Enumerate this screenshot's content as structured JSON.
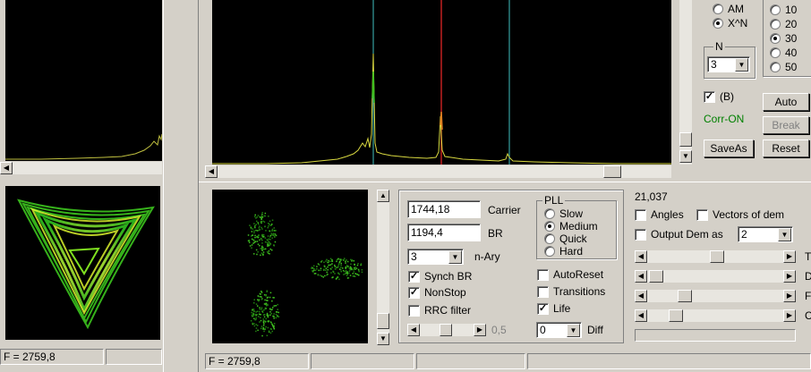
{
  "left_panel": {
    "status_text": "F = 2759,8"
  },
  "spectrum": {},
  "constellation": {},
  "controls": {
    "carrier_value": "1744,18",
    "carrier_label": "Carrier",
    "br_value": "1194,4",
    "br_label": "BR",
    "nary_value": "3",
    "nary_label": "n-Ary",
    "synch_br_label": "Synch BR",
    "synch_br_checked": true,
    "nonstop_label": "NonStop",
    "nonstop_checked": true,
    "rrc_label": "RRC filter",
    "rrc_checked": false,
    "slider_value": "0,5",
    "pll": {
      "title": "PLL",
      "options": [
        "Slow",
        "Medium",
        "Quick",
        "Hard"
      ],
      "selected": "Medium"
    },
    "autoreset_label": "AutoReset",
    "autoreset_checked": false,
    "transitions_label": "Transitions",
    "transitions_checked": false,
    "life_label": "Life",
    "life_checked": true,
    "diff_value": "0",
    "diff_label": "Diff"
  },
  "right_panel": {
    "value_readout": "21,037",
    "angles_label": "Angles",
    "vectors_label": "Vectors of dem",
    "output_dem_label": "Output Dem as",
    "output_dem_value": "2",
    "slider_labels": [
      "T",
      "D",
      "F",
      "C"
    ]
  },
  "top_right": {
    "mode_options": [
      "AM",
      "X^N"
    ],
    "mode_selected": "X^N",
    "n_group_title": "N",
    "n_value": "3",
    "number_options": [
      "10",
      "20",
      "30",
      "40",
      "50"
    ],
    "number_selected": "30",
    "b_label": "(B)",
    "b_checked": true,
    "corr_status": "Corr-ON",
    "auto_button": "Auto",
    "break_button": "Break",
    "saveas_button": "SaveAs",
    "reset_button": "Reset"
  },
  "status_bar": {
    "text": "F = 2759,8"
  },
  "colors": {
    "background": "#d4d0c8",
    "plot_background": "#000000",
    "spectrum_trace": "#e0e040",
    "marker_cyan": "#40c0c0",
    "marker_red": "#c02020",
    "constellation_green": "#40c020",
    "corr_on": "#008000"
  }
}
